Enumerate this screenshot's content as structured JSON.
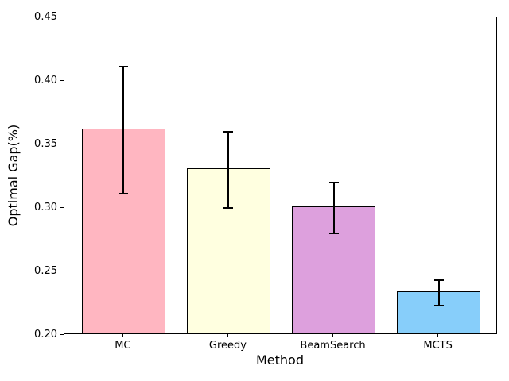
{
  "chart_data": {
    "type": "bar",
    "title": "",
    "xlabel": "Method",
    "ylabel": "Optimal Gap(%)",
    "categories": [
      "MC",
      "Greedy",
      "BeamSearch",
      "MCTS"
    ],
    "values": [
      0.361,
      0.33,
      0.3,
      0.233
    ],
    "error_bars": [
      0.05,
      0.03,
      0.02,
      0.01
    ],
    "bar_colors": [
      "#ffb6c1",
      "#ffffe0",
      "#dda0dd",
      "#87cefa"
    ],
    "bar_edge_color": "#000000",
    "error_bar_color": "#000000",
    "ylim": [
      0.2,
      0.45
    ],
    "yticks": [
      0.2,
      0.25,
      0.3,
      0.35,
      0.4,
      0.45
    ],
    "ytick_format_decimals": 2,
    "grid": false,
    "legend_position": "none",
    "bar_width_fraction": 0.8
  }
}
